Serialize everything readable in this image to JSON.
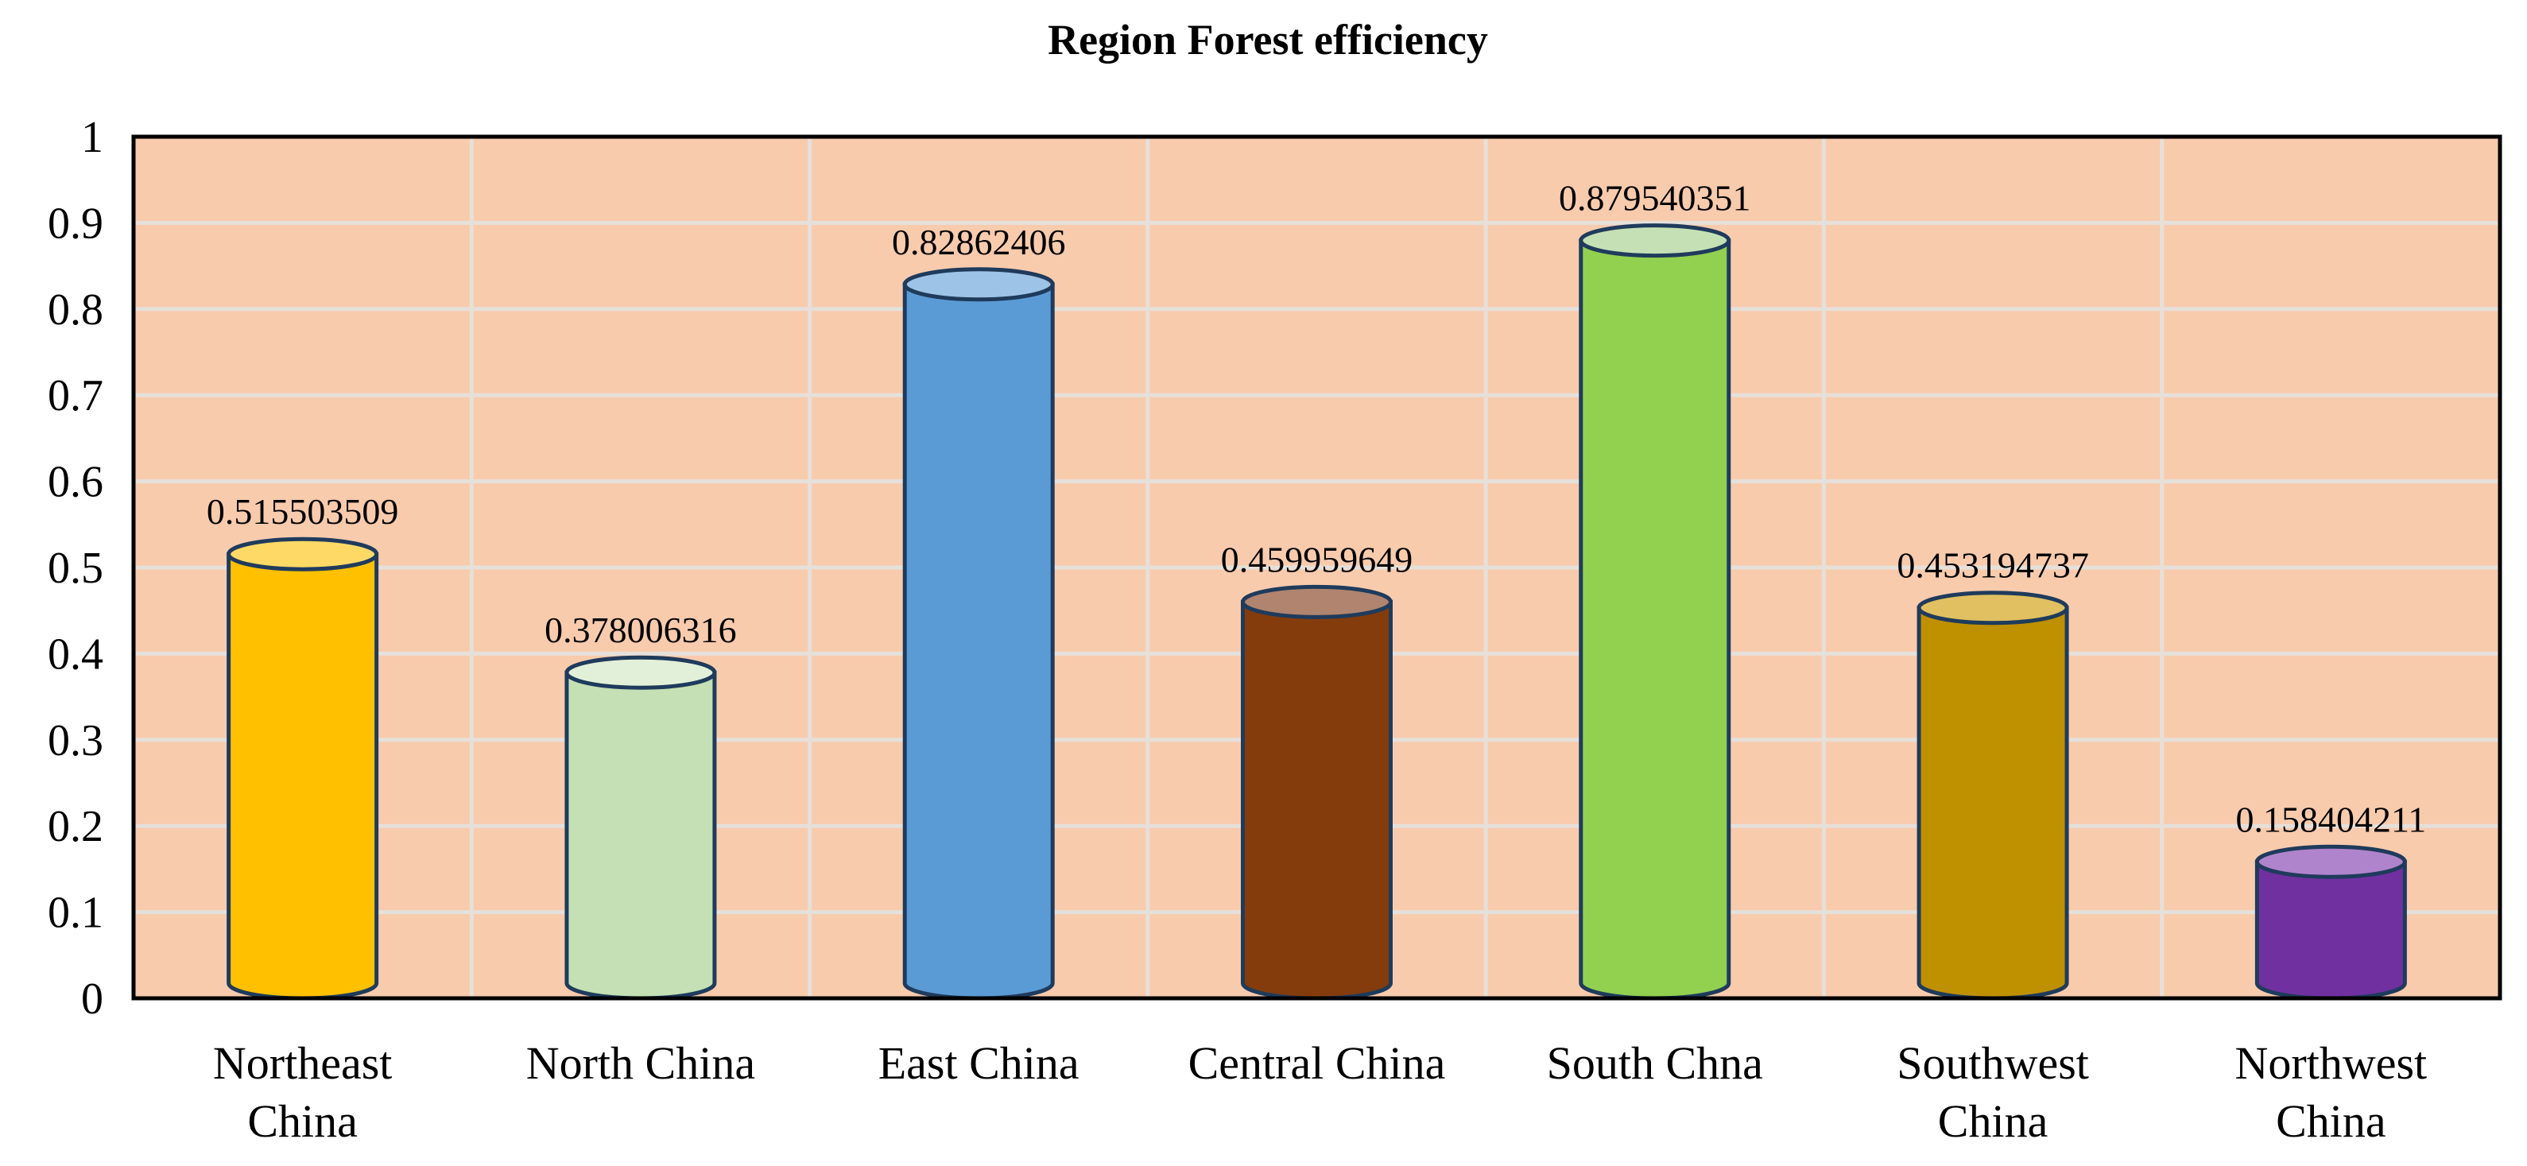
{
  "chart_data": {
    "type": "bar",
    "bar_style": "cylinder",
    "title": "Region Forest efficiency",
    "xlabel": "",
    "ylabel": "",
    "categories": [
      "Northeast China",
      "North China",
      "East China",
      "Central China",
      "South Chna",
      "Southwest China",
      "Northwest China"
    ],
    "category_label_lines": [
      [
        "Northeast",
        "China"
      ],
      [
        "North China"
      ],
      [
        "East China"
      ],
      [
        "Central China"
      ],
      [
        "South Chna"
      ],
      [
        "Southwest",
        "China"
      ],
      [
        "Northwest",
        "China"
      ]
    ],
    "values": [
      0.515503509,
      0.378006316,
      0.82862406,
      0.459959649,
      0.879540351,
      0.453194737,
      0.158404211
    ],
    "data_labels": [
      "0.515503509",
      "0.378006316",
      "0.82862406",
      "0.459959649",
      "0.879540351",
      "0.453194737",
      "0.158404211"
    ],
    "ylim": [
      0,
      1
    ],
    "yticks": [
      "0",
      "0.1",
      "0.2",
      "0.3",
      "0.4",
      "0.5",
      "0.6",
      "0.7",
      "0.8",
      "0.9",
      "1"
    ],
    "grid": true,
    "legend": "none",
    "colors": {
      "plot_background": "#F8CBAD",
      "gridline": "#E6E0DA",
      "outline": "#000000",
      "bars": [
        "#FFC000",
        "#C5E0B4",
        "#5B9BD5",
        "#843C0C",
        "#92D050",
        "#BF9000",
        "#7030A0"
      ],
      "bar_tops": [
        "#FFD966",
        "#E2F0D9",
        "#9DC3E6",
        "#B0846E",
        "#C5E0B4",
        "#E0C060",
        "#B084CC"
      ],
      "bar_edge": "#1F3B5C"
    }
  }
}
